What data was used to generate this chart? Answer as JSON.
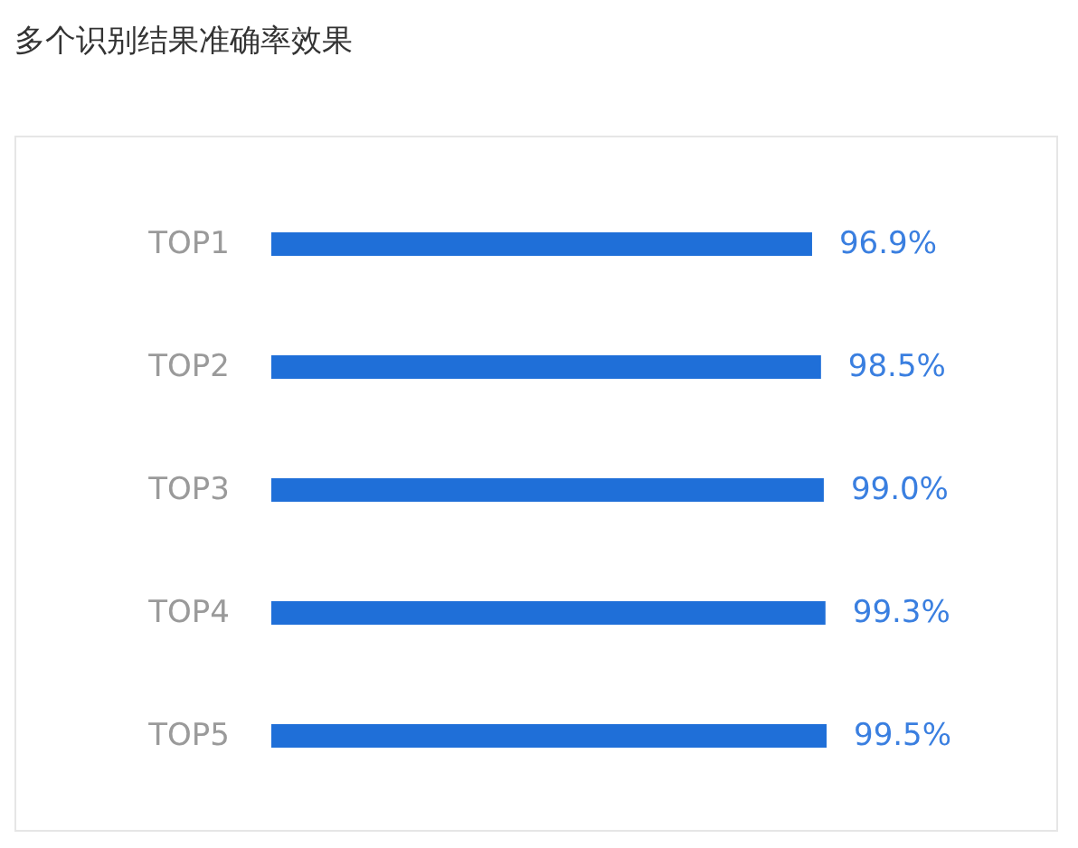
{
  "chart_data": {
    "type": "bar",
    "orientation": "horizontal",
    "title": "多个识别结果准确率效果",
    "categories": [
      "TOP1",
      "TOP2",
      "TOP3",
      "TOP4",
      "TOP5"
    ],
    "values": [
      96.9,
      98.5,
      99.0,
      99.3,
      99.5
    ],
    "value_labels": [
      "96.9%",
      "98.5%",
      "99.0%",
      "99.3%",
      "99.5%"
    ],
    "color": "#1f6fd8"
  }
}
